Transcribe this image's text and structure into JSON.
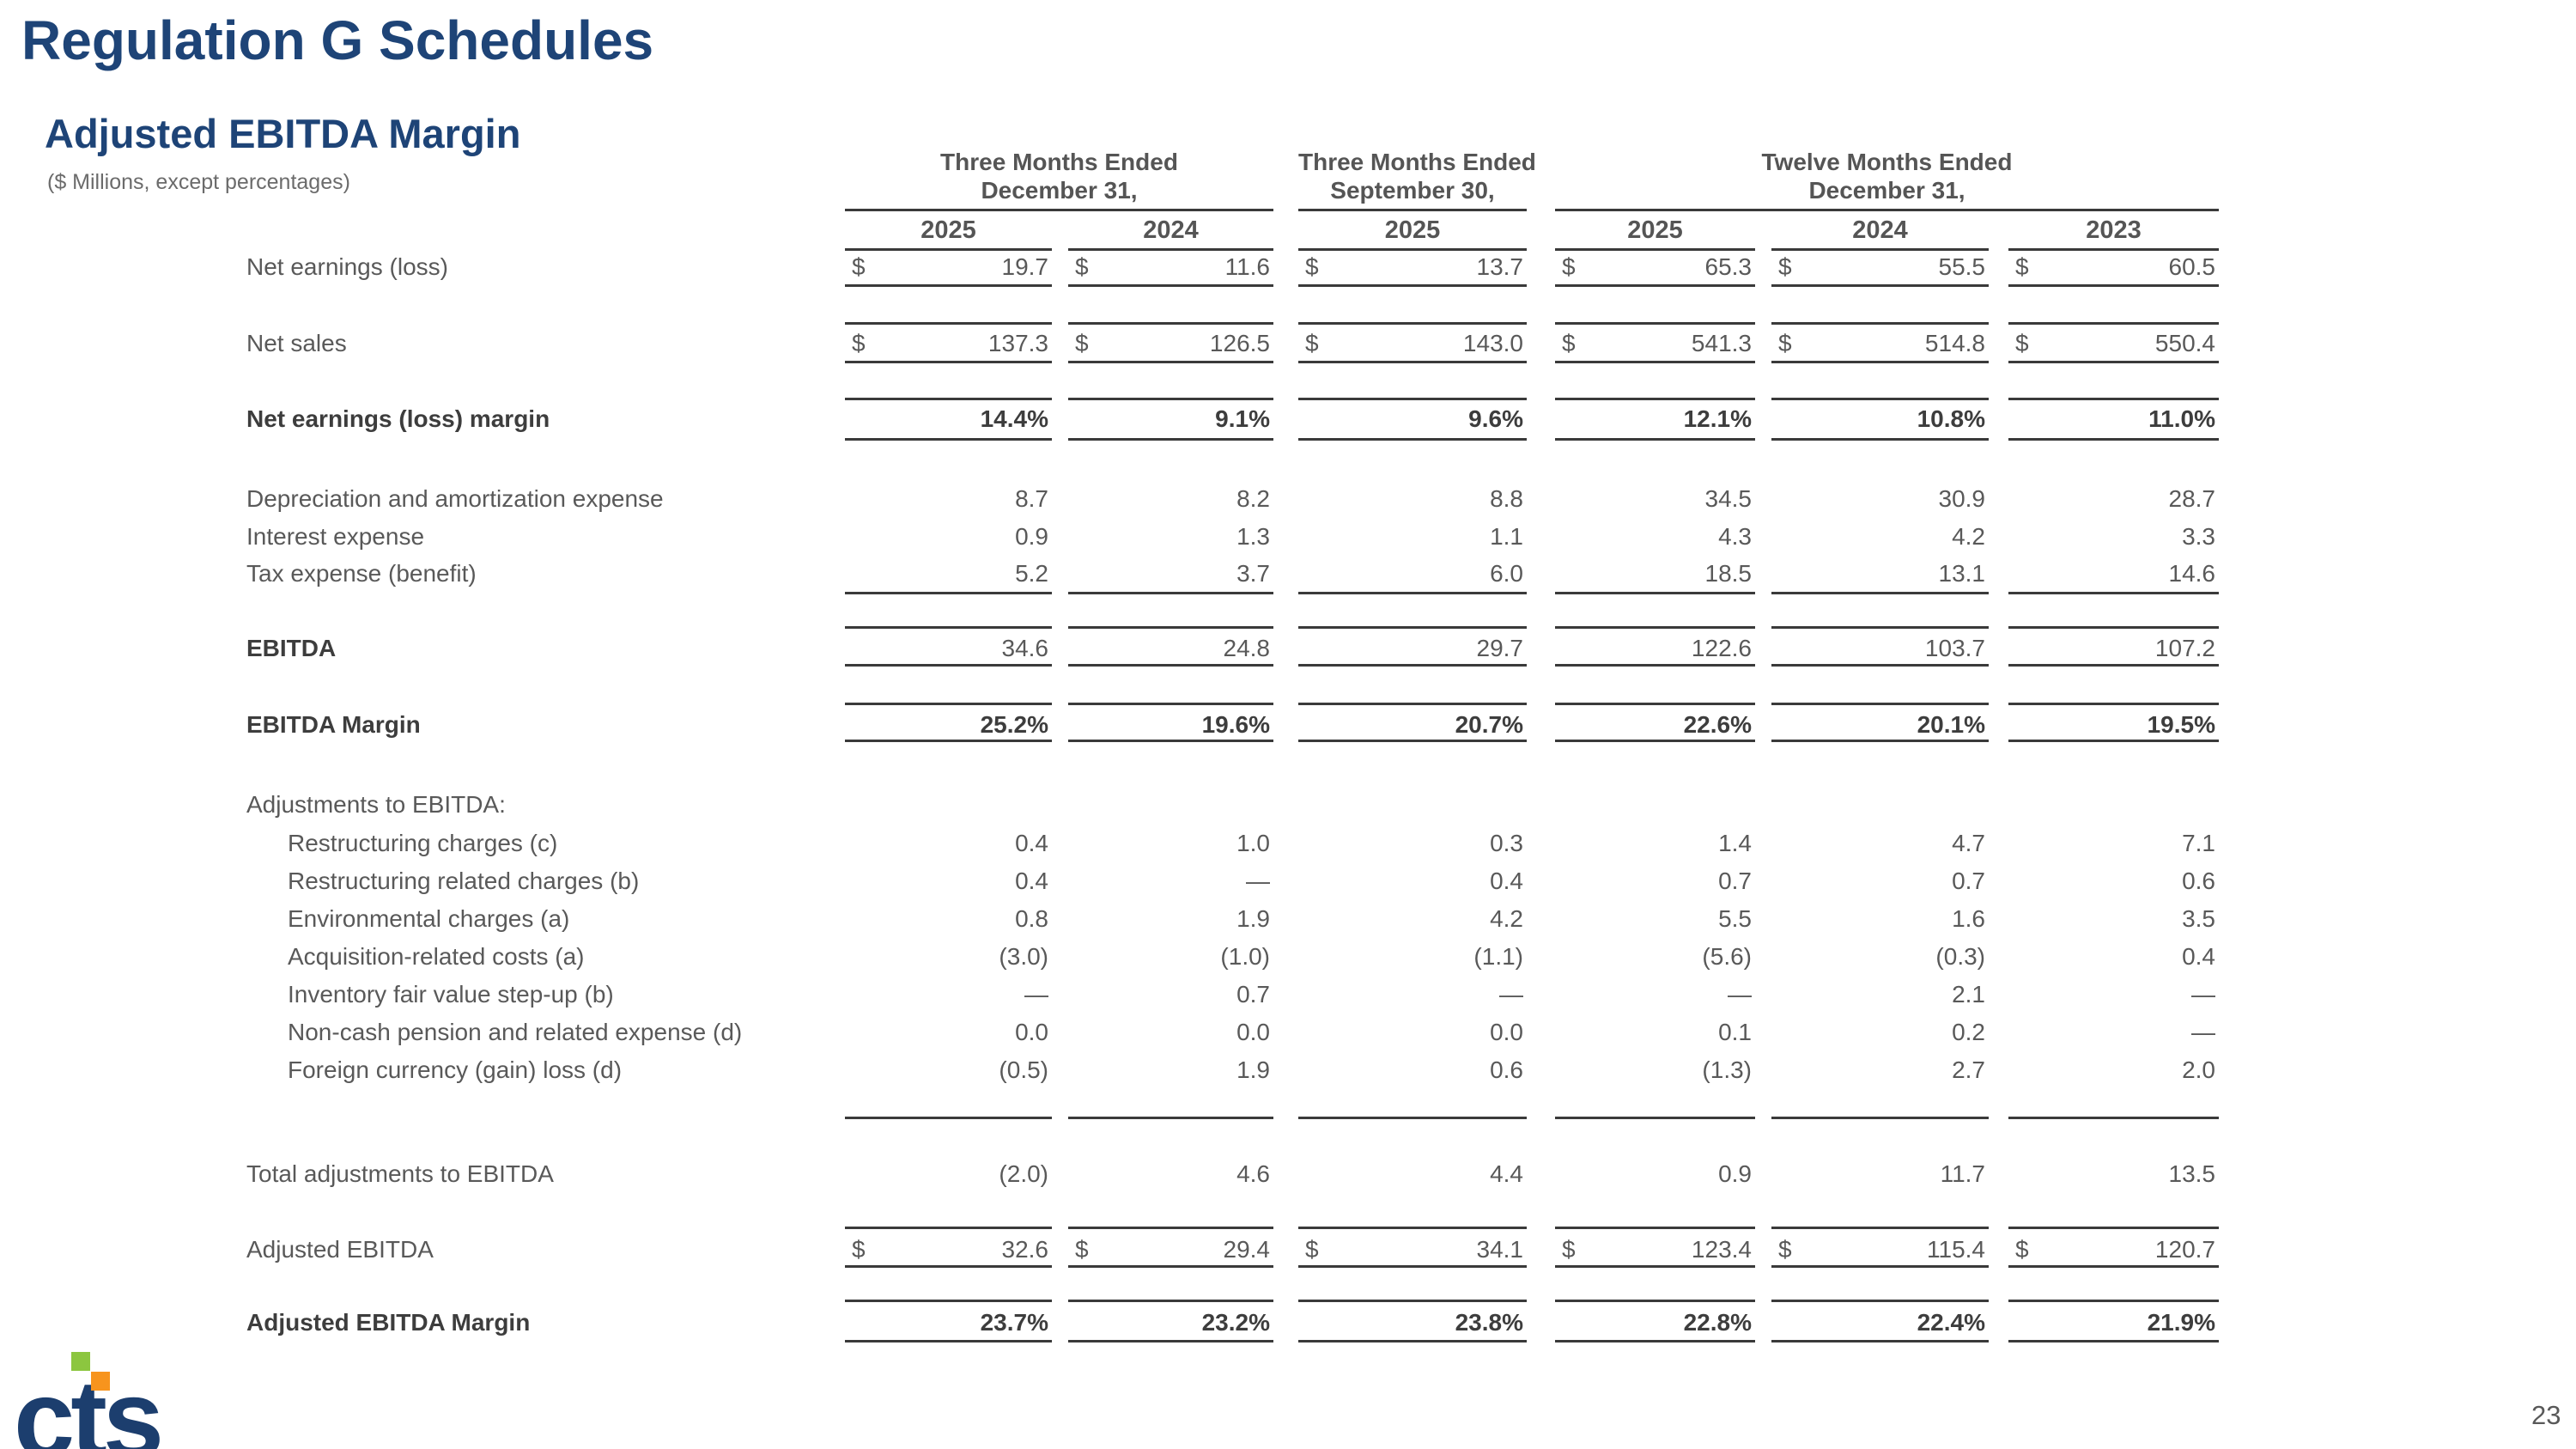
{
  "page": {
    "title": "Regulation G Schedules",
    "subtitle": "Adjusted EBITDA Margin",
    "units_note": "($ Millions, except percentages)",
    "page_number": "23",
    "logo_text": "cts"
  },
  "colors": {
    "heading_navy": "#1e4477",
    "logo_navy": "#1c3e6e",
    "logo_green": "#8cc63f",
    "logo_orange": "#f7941d",
    "body_gray": "#595959",
    "rule_gray": "#3a3a3a"
  },
  "table": {
    "column_groups": [
      {
        "line1": "Three Months Ended",
        "line2": "December 31,"
      },
      {
        "line1": "Three Months Ended",
        "line2": "September 30,"
      },
      {
        "line1": "Twelve Months Ended",
        "line2": "December 31,"
      }
    ],
    "year_headers": [
      "2025",
      "2024",
      "2025",
      "2025",
      "2024",
      "2023"
    ],
    "rows": [
      {
        "label": "Net earnings (loss)",
        "indent": 0,
        "label_bold": false,
        "values_bold": false,
        "dollar": true,
        "values": [
          "19.7",
          "11.6",
          "13.7",
          "65.3",
          "55.5",
          "60.5"
        ]
      },
      {
        "label": "Net sales",
        "indent": 0,
        "label_bold": false,
        "values_bold": false,
        "dollar": true,
        "values": [
          "137.3",
          "126.5",
          "143.0",
          "541.3",
          "514.8",
          "550.4"
        ]
      },
      {
        "label": "Net earnings (loss) margin",
        "indent": 0,
        "label_bold": true,
        "values_bold": true,
        "dollar": false,
        "values": [
          "14.4%",
          "9.1%",
          "9.6%",
          "12.1%",
          "10.8%",
          "11.0%"
        ]
      },
      {
        "label": "Depreciation and amortization expense",
        "indent": 0,
        "label_bold": false,
        "values_bold": false,
        "dollar": false,
        "values": [
          "8.7",
          "8.2",
          "8.8",
          "34.5",
          "30.9",
          "28.7"
        ]
      },
      {
        "label": "Interest expense",
        "indent": 0,
        "label_bold": false,
        "values_bold": false,
        "dollar": false,
        "values": [
          "0.9",
          "1.3",
          "1.1",
          "4.3",
          "4.2",
          "3.3"
        ]
      },
      {
        "label": "Tax expense (benefit)",
        "indent": 0,
        "label_bold": false,
        "values_bold": false,
        "dollar": false,
        "values": [
          "5.2",
          "3.7",
          "6.0",
          "18.5",
          "13.1",
          "14.6"
        ]
      },
      {
        "label": "EBITDA",
        "indent": 0,
        "label_bold": true,
        "values_bold": false,
        "dollar": false,
        "values": [
          "34.6",
          "24.8",
          "29.7",
          "122.6",
          "103.7",
          "107.2"
        ]
      },
      {
        "label": "EBITDA Margin",
        "indent": 0,
        "label_bold": true,
        "values_bold": true,
        "dollar": false,
        "values": [
          "25.2%",
          "19.6%",
          "20.7%",
          "22.6%",
          "20.1%",
          "19.5%"
        ]
      },
      {
        "label": "Adjustments to EBITDA:",
        "indent": 0,
        "label_bold": false,
        "values_bold": false,
        "dollar": false,
        "values": null
      },
      {
        "label": "Restructuring charges (c)",
        "indent": 1,
        "label_bold": false,
        "values_bold": false,
        "dollar": false,
        "values": [
          "0.4",
          "1.0",
          "0.3",
          "1.4",
          "4.7",
          "7.1"
        ]
      },
      {
        "label": "Restructuring related charges (b)",
        "indent": 1,
        "label_bold": false,
        "values_bold": false,
        "dollar": false,
        "values": [
          "0.4",
          "—",
          "0.4",
          "0.7",
          "0.7",
          "0.6"
        ]
      },
      {
        "label": "Environmental charges (a)",
        "indent": 1,
        "label_bold": false,
        "values_bold": false,
        "dollar": false,
        "values": [
          "0.8",
          "1.9",
          "4.2",
          "5.5",
          "1.6",
          "3.5"
        ]
      },
      {
        "label": "Acquisition-related costs (a)",
        "indent": 1,
        "label_bold": false,
        "values_bold": false,
        "dollar": false,
        "values": [
          "(3.0)",
          "(1.0)",
          "(1.1)",
          "(5.6)",
          "(0.3)",
          "0.4"
        ]
      },
      {
        "label": "Inventory fair value step-up (b)",
        "indent": 1,
        "label_bold": false,
        "values_bold": false,
        "dollar": false,
        "values": [
          "—",
          "0.7",
          "—",
          "—",
          "2.1",
          "—"
        ]
      },
      {
        "label": "Non-cash pension and related expense (d)",
        "indent": 1,
        "label_bold": false,
        "values_bold": false,
        "dollar": false,
        "values": [
          "0.0",
          "0.0",
          "0.0",
          "0.1",
          "0.2",
          "—"
        ]
      },
      {
        "label": "Foreign currency (gain) loss (d)",
        "indent": 1,
        "label_bold": false,
        "values_bold": false,
        "dollar": false,
        "values": [
          "(0.5)",
          "1.9",
          "0.6",
          "(1.3)",
          "2.7",
          "2.0"
        ]
      },
      {
        "label": "Total adjustments to EBITDA",
        "indent": 0,
        "label_bold": false,
        "values_bold": false,
        "dollar": false,
        "values": [
          "(2.0)",
          "4.6",
          "4.4",
          "0.9",
          "11.7",
          "13.5"
        ]
      },
      {
        "label": "Adjusted EBITDA",
        "indent": 0,
        "label_bold": false,
        "values_bold": false,
        "dollar": true,
        "values": [
          "32.6",
          "29.4",
          "34.1",
          "123.4",
          "115.4",
          "120.7"
        ]
      },
      {
        "label": "Adjusted EBITDA Margin",
        "indent": 0,
        "label_bold": true,
        "values_bold": true,
        "dollar": false,
        "values": [
          "23.7%",
          "23.2%",
          "23.8%",
          "22.8%",
          "22.4%",
          "21.9%"
        ]
      }
    ]
  }
}
